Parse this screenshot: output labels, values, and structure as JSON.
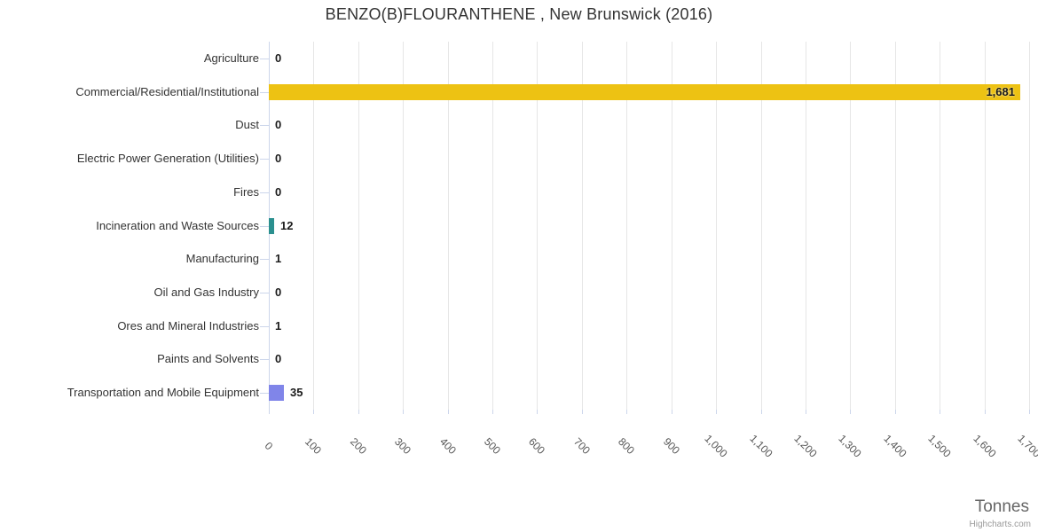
{
  "title": "BENZO(B)FLOURANTHENE , New Brunswick (2016)",
  "credits": "Highcharts.com",
  "chart_data": {
    "type": "bar",
    "title": "BENZO(B)FLOURANTHENE , New Brunswick (2016)",
    "orientation": "horizontal",
    "categories": [
      "Agriculture",
      "Commercial/Residential/Institutional",
      "Dust",
      "Electric Power Generation (Utilities)",
      "Fires",
      "Incineration and Waste Sources",
      "Manufacturing",
      "Oil and Gas Industry",
      "Ores and Mineral Industries",
      "Paints and Solvents",
      "Transportation and Mobile Equipment"
    ],
    "values": [
      0,
      1681,
      0,
      0,
      0,
      12,
      1,
      0,
      1,
      0,
      35
    ],
    "data_labels": [
      "0",
      "1,681",
      "0",
      "0",
      "0",
      "12",
      "1",
      "0",
      "1",
      "0",
      "35"
    ],
    "bar_colors": [
      "#7cb5ec",
      "#edc213",
      "#7cb5ec",
      "#7cb5ec",
      "#7cb5ec",
      "#2b908f",
      "#7cb5ec",
      "#7cb5ec",
      "#7cb5ec",
      "#7cb5ec",
      "#8085e9"
    ],
    "xlabel": "Tonnes",
    "xlim": [
      0,
      1700
    ],
    "x_tick_interval": 100,
    "x_tick_labels": [
      "0",
      "100",
      "200",
      "300",
      "400",
      "500",
      "600",
      "700",
      "800",
      "900",
      "1,000",
      "1,100",
      "1,200",
      "1,300",
      "1,400",
      "1,500",
      "1,600",
      "1,700"
    ],
    "grid": true,
    "legend": false,
    "colors": {
      "grid_line": "#e6e6e6",
      "axis_line": "#ccd6eb",
      "label_text": "#333333"
    }
  }
}
